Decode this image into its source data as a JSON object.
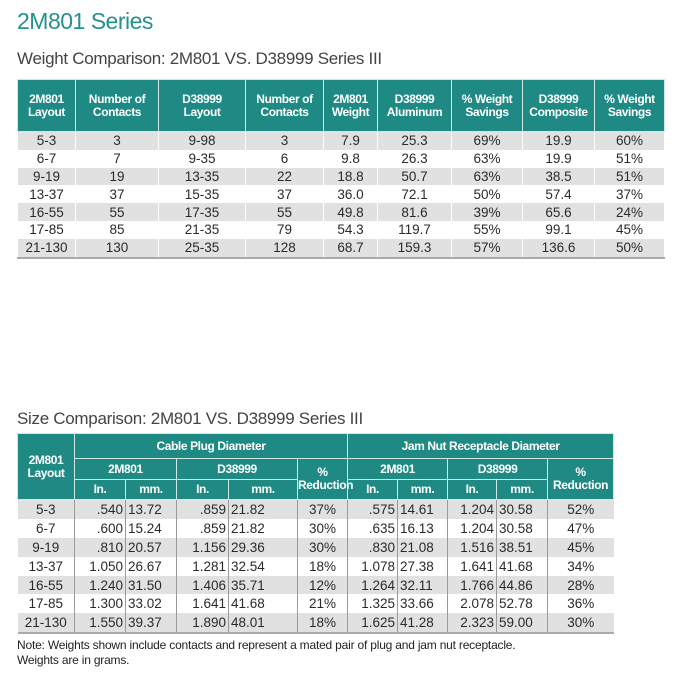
{
  "title": "2M801 Series",
  "weight_table": {
    "caption": "Weight Comparison: 2M801 VS. D38999 Series III",
    "headers": [
      [
        "2M801",
        "Layout"
      ],
      [
        "Number of",
        "Contacts"
      ],
      [
        "D38999",
        "Layout"
      ],
      [
        "Number of",
        "Contacts"
      ],
      [
        "2M801",
        "Weight"
      ],
      [
        "D38999",
        "Aluminum"
      ],
      [
        "% Weight",
        "Savings"
      ],
      [
        "D38999",
        "Composite"
      ],
      [
        "% Weight",
        "Savings"
      ]
    ],
    "rows": [
      [
        "5-3",
        "3",
        "9-98",
        "3",
        "7.9",
        "25.3",
        "69%",
        "19.9",
        "60%"
      ],
      [
        "6-7",
        "7",
        "9-35",
        "6",
        "9.8",
        "26.3",
        "63%",
        "19.9",
        "51%"
      ],
      [
        "9-19",
        "19",
        "13-35",
        "22",
        "18.8",
        "50.7",
        "63%",
        "38.5",
        "51%"
      ],
      [
        "13-37",
        "37",
        "15-35",
        "37",
        "36.0",
        "72.1",
        "50%",
        "57.4",
        "37%"
      ],
      [
        "16-55",
        "55",
        "17-35",
        "55",
        "49.8",
        "81.6",
        "39%",
        "65.6",
        "24%"
      ],
      [
        "17-85",
        "85",
        "21-35",
        "79",
        "54.3",
        "119.7",
        "55%",
        "99.1",
        "45%"
      ],
      [
        "21-130",
        "130",
        "25-35",
        "128",
        "68.7",
        "159.3",
        "57%",
        "136.6",
        "50%"
      ]
    ]
  },
  "size_table": {
    "caption": "Size Comparison: 2M801 VS. D38999 Series III",
    "layout_header": [
      "2M801",
      "Layout"
    ],
    "groups": [
      "Cable Plug Diameter",
      "Jam Nut Receptacle Diameter"
    ],
    "subgroups": [
      "2M801",
      "D38999"
    ],
    "reduction": [
      "%",
      "Reduction"
    ],
    "units": [
      "In.",
      "mm."
    ],
    "rows": [
      [
        "5-3",
        ".540",
        "13.72",
        ".859",
        "21.82",
        "37%",
        ".575",
        "14.61",
        "1.204",
        "30.58",
        "52%"
      ],
      [
        "6-7",
        ".600",
        "15.24",
        ".859",
        "21.82",
        "30%",
        ".635",
        "16.13",
        "1.204",
        "30.58",
        "47%"
      ],
      [
        "9-19",
        ".810",
        "20.57",
        "1.156",
        "29.36",
        "30%",
        ".830",
        "21.08",
        "1.516",
        "38.51",
        "45%"
      ],
      [
        "13-37",
        "1.050",
        "26.67",
        "1.281",
        "32.54",
        "18%",
        "1.078",
        "27.38",
        "1.641",
        "41.68",
        "34%"
      ],
      [
        "16-55",
        "1.240",
        "31.50",
        "1.406",
        "35.71",
        "12%",
        "1.264",
        "32.11",
        "1.766",
        "44.86",
        "28%"
      ],
      [
        "17-85",
        "1.300",
        "33.02",
        "1.641",
        "41.68",
        "21%",
        "1.325",
        "33.66",
        "2.078",
        "52.78",
        "36%"
      ],
      [
        "21-130",
        "1.550",
        "39.37",
        "1.890",
        "48.01",
        "18%",
        "1.625",
        "41.28",
        "2.323",
        "59.00",
        "30%"
      ]
    ]
  },
  "note": [
    "Note: Weights shown include contacts and represent a mated pair of plug and jam nut receptacle.",
    "Weights are in grams."
  ],
  "colors": {
    "header_bg": "#1f8a84",
    "title": "#25918a",
    "stripe": "#e1e1e2"
  }
}
